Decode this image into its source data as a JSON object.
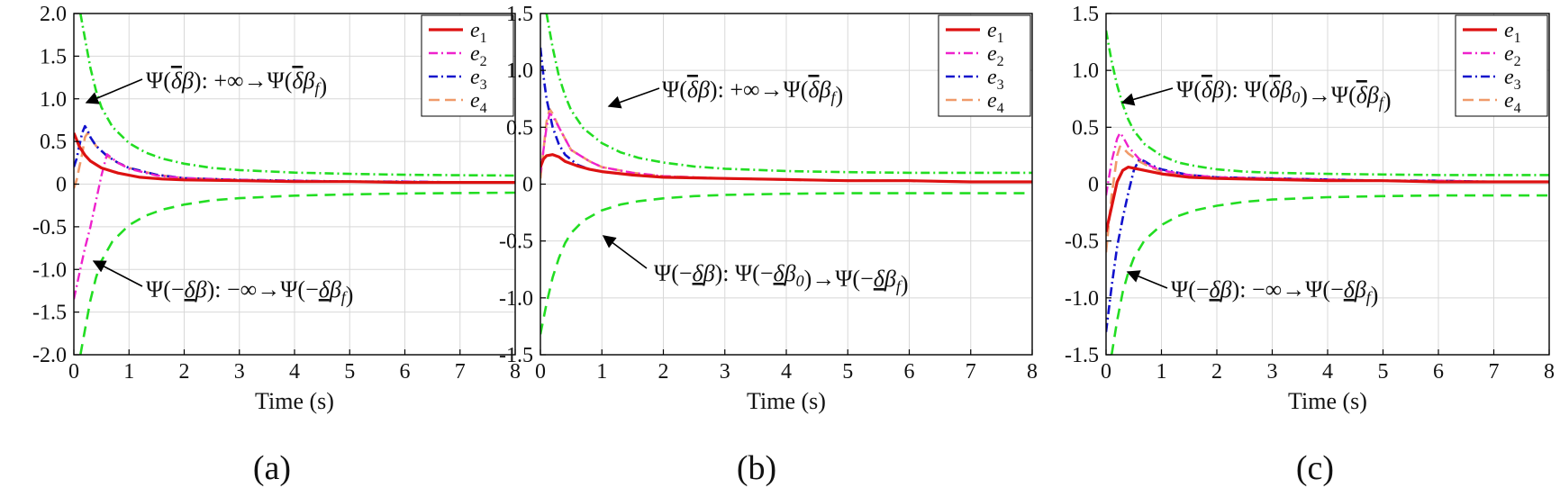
{
  "colors": {
    "e1": "#dd1111",
    "e2": "#ee22cc",
    "e3": "#1111cc",
    "e4": "#f09a6a",
    "bound": "#22dd22",
    "grid": "#d8d8d8"
  },
  "chart_data": [
    {
      "type": "line",
      "caption": "(a)",
      "xlabel": "Time (s)",
      "ylabel": "",
      "xlim": [
        0,
        8
      ],
      "ylim": [
        -2.0,
        2.0
      ],
      "xticks": [
        "0",
        "1",
        "2",
        "3",
        "4",
        "5",
        "6",
        "7",
        "8"
      ],
      "yticks": [
        "-2.0",
        "-1.5",
        "-1.0",
        "-0.5",
        "0",
        "0.5",
        "1.0",
        "1.5",
        "2.0"
      ],
      "legend": "top-right",
      "grid": true,
      "series": [
        {
          "name": "e1",
          "x": [
            0,
            0.05,
            0.1,
            0.2,
            0.3,
            0.5,
            0.8,
            1.2,
            1.6,
            2,
            3,
            4,
            5,
            6,
            7,
            8
          ],
          "y": [
            0.6,
            0.52,
            0.44,
            0.34,
            0.27,
            0.19,
            0.13,
            0.08,
            0.06,
            0.05,
            0.04,
            0.03,
            0.03,
            0.02,
            0.02,
            0.02
          ]
        },
        {
          "name": "e2",
          "x": [
            0,
            0.1,
            0.2,
            0.3,
            0.4,
            0.5,
            0.6,
            0.8,
            1,
            1.5,
            2,
            3,
            4,
            5,
            6,
            7,
            8
          ],
          "y": [
            -1.35,
            -1.05,
            -0.75,
            -0.5,
            -0.2,
            0.1,
            0.35,
            0.25,
            0.18,
            0.1,
            0.07,
            0.05,
            0.04,
            0.03,
            0.03,
            0.02,
            0.02
          ]
        },
        {
          "name": "e3",
          "x": [
            0,
            0.05,
            0.1,
            0.15,
            0.2,
            0.25,
            0.3,
            0.4,
            0.6,
            0.8,
            1,
            1.5,
            2,
            3,
            4,
            5,
            6,
            7,
            8
          ],
          "y": [
            0.2,
            0.3,
            0.45,
            0.6,
            0.68,
            0.63,
            0.55,
            0.45,
            0.33,
            0.25,
            0.19,
            0.11,
            0.07,
            0.05,
            0.04,
            0.03,
            0.03,
            0.02,
            0.02
          ]
        },
        {
          "name": "e4",
          "x": [
            0,
            0.05,
            0.1,
            0.15,
            0.2,
            0.25,
            0.3,
            0.4,
            0.6,
            0.8,
            1,
            1.5,
            2,
            3,
            4,
            5,
            6,
            7,
            8
          ],
          "y": [
            -0.05,
            0.05,
            0.2,
            0.35,
            0.55,
            0.6,
            0.55,
            0.45,
            0.33,
            0.25,
            0.19,
            0.11,
            0.07,
            0.05,
            0.04,
            0.03,
            0.03,
            0.02,
            0.02
          ]
        },
        {
          "name": "upper bound",
          "x": [
            0.12,
            0.2,
            0.3,
            0.4,
            0.5,
            0.7,
            1,
            1.3,
            1.6,
            2,
            2.5,
            3,
            4,
            5,
            6,
            7,
            8
          ],
          "y": [
            2.0,
            1.71,
            1.36,
            1.1,
            0.9,
            0.67,
            0.48,
            0.37,
            0.3,
            0.24,
            0.19,
            0.165,
            0.135,
            0.12,
            0.11,
            0.105,
            0.1
          ]
        },
        {
          "name": "lower bound",
          "x": [
            0.12,
            0.2,
            0.3,
            0.4,
            0.5,
            0.7,
            1,
            1.3,
            1.6,
            2,
            2.5,
            3,
            4,
            5,
            6,
            7,
            8
          ],
          "y": [
            -2.0,
            -1.71,
            -1.36,
            -1.1,
            -0.9,
            -0.67,
            -0.48,
            -0.37,
            -0.3,
            -0.24,
            -0.19,
            -0.165,
            -0.135,
            -0.12,
            -0.11,
            -0.105,
            -0.1
          ]
        }
      ],
      "annotations": {
        "upper": "Ψ(δ̄β): +∞→Ψ(δ̄βf)",
        "lower": "Ψ(−δ̲β): −∞→Ψ(−δ̲βf)"
      }
    },
    {
      "type": "line",
      "caption": "(b)",
      "xlabel": "Time (s)",
      "ylabel": "",
      "xlim": [
        0,
        8
      ],
      "ylim": [
        -1.5,
        1.5
      ],
      "xticks": [
        "0",
        "1",
        "2",
        "3",
        "4",
        "5",
        "6",
        "7",
        "8"
      ],
      "yticks": [
        "-1.5",
        "-1.0",
        "-0.5",
        "0",
        "0.5",
        "1.0",
        "1.5"
      ],
      "legend": "top-right",
      "grid": true,
      "series": [
        {
          "name": "e1",
          "x": [
            0,
            0.05,
            0.1,
            0.2,
            0.3,
            0.4,
            0.6,
            0.8,
            1,
            1.5,
            2,
            3,
            4,
            5,
            6,
            7,
            8
          ],
          "y": [
            0.15,
            0.22,
            0.25,
            0.26,
            0.24,
            0.2,
            0.16,
            0.13,
            0.11,
            0.08,
            0.06,
            0.05,
            0.04,
            0.03,
            0.03,
            0.02,
            0.02
          ]
        },
        {
          "name": "e2",
          "x": [
            0,
            0.05,
            0.1,
            0.15,
            0.2,
            0.3,
            0.5,
            0.8,
            1,
            1.5,
            2,
            3,
            4,
            5,
            6,
            7,
            8
          ],
          "y": [
            0.1,
            0.3,
            0.5,
            0.62,
            0.6,
            0.5,
            0.3,
            0.2,
            0.15,
            0.1,
            0.07,
            0.05,
            0.04,
            0.03,
            0.03,
            0.02,
            0.02
          ]
        },
        {
          "name": "e3",
          "x": [
            0,
            0.05,
            0.1,
            0.2,
            0.3,
            0.4,
            0.6,
            0.8,
            1,
            1.5,
            2,
            3,
            4,
            5,
            6,
            7,
            8
          ],
          "y": [
            1.2,
            0.95,
            0.75,
            0.5,
            0.35,
            0.26,
            0.17,
            0.13,
            0.11,
            0.08,
            0.06,
            0.05,
            0.04,
            0.03,
            0.03,
            0.02,
            0.02
          ]
        },
        {
          "name": "e4",
          "x": [
            0,
            0.05,
            0.1,
            0.15,
            0.2,
            0.3,
            0.5,
            0.8,
            1,
            1.5,
            2,
            3,
            4,
            5,
            6,
            7,
            8
          ],
          "y": [
            0.05,
            0.3,
            0.55,
            0.66,
            0.62,
            0.5,
            0.3,
            0.2,
            0.15,
            0.1,
            0.07,
            0.05,
            0.04,
            0.03,
            0.03,
            0.02,
            0.02
          ]
        },
        {
          "name": "upper bound",
          "x": [
            0.1,
            0.2,
            0.3,
            0.4,
            0.5,
            0.7,
            1,
            1.3,
            1.6,
            2,
            2.5,
            3,
            4,
            5,
            6,
            7,
            8
          ],
          "y": [
            1.5,
            1.2,
            0.95,
            0.78,
            0.65,
            0.49,
            0.36,
            0.28,
            0.23,
            0.19,
            0.155,
            0.135,
            0.115,
            0.105,
            0.1,
            0.1,
            0.1
          ]
        },
        {
          "name": "lower bound",
          "x": [
            0,
            0.1,
            0.2,
            0.3,
            0.4,
            0.5,
            0.7,
            1,
            1.3,
            1.6,
            2,
            2.5,
            3,
            4,
            5,
            6,
            7,
            8
          ],
          "y": [
            -1.32,
            -1.05,
            -0.82,
            -0.65,
            -0.52,
            -0.43,
            -0.32,
            -0.23,
            -0.18,
            -0.15,
            -0.125,
            -0.105,
            -0.095,
            -0.085,
            -0.08,
            -0.08,
            -0.08,
            -0.08
          ]
        }
      ],
      "annotations": {
        "upper": "Ψ(δ̄β): +∞→Ψ(δ̄βf)",
        "lower": "Ψ(−δ̲β): Ψ(−δ̲β0)→Ψ(−δ̲βf)"
      }
    },
    {
      "type": "line",
      "caption": "(c)",
      "xlabel": "Time (s)",
      "ylabel": "",
      "xlim": [
        0,
        8
      ],
      "ylim": [
        -1.5,
        1.5
      ],
      "xticks": [
        "0",
        "1",
        "2",
        "3",
        "4",
        "5",
        "6",
        "7",
        "8"
      ],
      "yticks": [
        "-1.5",
        "-1.0",
        "-0.5",
        "0",
        "0.5",
        "1.0",
        "1.5"
      ],
      "legend": "top-right",
      "grid": true,
      "series": [
        {
          "name": "e1",
          "x": [
            0,
            0.1,
            0.2,
            0.3,
            0.4,
            0.5,
            0.7,
            1,
            1.5,
            2,
            3,
            4,
            5,
            6,
            7,
            8
          ],
          "y": [
            -0.42,
            -0.2,
            0.02,
            0.12,
            0.15,
            0.14,
            0.12,
            0.09,
            0.06,
            0.05,
            0.04,
            0.03,
            0.03,
            0.02,
            0.02,
            0.02
          ]
        },
        {
          "name": "e2",
          "x": [
            0,
            0.1,
            0.2,
            0.25,
            0.3,
            0.4,
            0.6,
            0.8,
            1,
            1.5,
            2,
            3,
            4,
            5,
            6,
            7,
            8
          ],
          "y": [
            -0.1,
            0.2,
            0.4,
            0.45,
            0.42,
            0.33,
            0.22,
            0.16,
            0.12,
            0.08,
            0.06,
            0.05,
            0.04,
            0.03,
            0.03,
            0.02,
            0.02
          ]
        },
        {
          "name": "e3",
          "x": [
            0,
            0.1,
            0.2,
            0.3,
            0.4,
            0.5,
            0.6,
            0.7,
            0.8,
            1,
            1.5,
            2,
            3,
            4,
            5,
            6,
            7,
            8
          ],
          "y": [
            -1.3,
            -0.9,
            -0.55,
            -0.3,
            -0.08,
            0.12,
            0.22,
            0.2,
            0.17,
            0.13,
            0.08,
            0.06,
            0.05,
            0.04,
            0.03,
            0.03,
            0.02,
            0.02
          ]
        },
        {
          "name": "e4",
          "x": [
            0,
            0.1,
            0.2,
            0.25,
            0.3,
            0.4,
            0.6,
            0.8,
            1,
            1.5,
            2,
            3,
            4,
            5,
            6,
            7,
            8
          ],
          "y": [
            -0.6,
            -0.1,
            0.25,
            0.33,
            0.32,
            0.27,
            0.2,
            0.15,
            0.11,
            0.08,
            0.06,
            0.05,
            0.04,
            0.03,
            0.03,
            0.02,
            0.02
          ]
        },
        {
          "name": "upper bound",
          "x": [
            0,
            0.1,
            0.2,
            0.3,
            0.4,
            0.5,
            0.7,
            1,
            1.3,
            1.6,
            2,
            2.5,
            3,
            4,
            5,
            6,
            7,
            8
          ],
          "y": [
            1.35,
            1.08,
            0.87,
            0.7,
            0.57,
            0.47,
            0.35,
            0.25,
            0.19,
            0.16,
            0.13,
            0.11,
            0.1,
            0.09,
            0.085,
            0.08,
            0.08,
            0.08
          ]
        },
        {
          "name": "lower bound",
          "x": [
            0.1,
            0.2,
            0.3,
            0.4,
            0.5,
            0.7,
            1,
            1.3,
            1.6,
            2,
            2.5,
            3,
            4,
            5,
            6,
            7,
            8
          ],
          "y": [
            -1.5,
            -1.2,
            -0.95,
            -0.78,
            -0.65,
            -0.49,
            -0.36,
            -0.28,
            -0.23,
            -0.19,
            -0.155,
            -0.135,
            -0.115,
            -0.105,
            -0.1,
            -0.1,
            -0.1
          ]
        }
      ],
      "annotations": {
        "upper": "Ψ(δ̄β): Ψ(δ̄β0)→Ψ(δ̄βf)",
        "lower": "Ψ(−δ̲β): −∞→Ψ(−δ̲βf)"
      }
    }
  ]
}
